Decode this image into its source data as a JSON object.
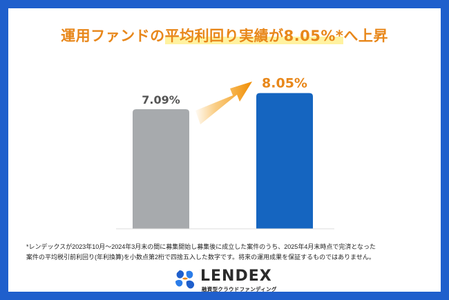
{
  "title": {
    "part1": "運用ファンドの",
    "highlight": "平均利回り実績が8.05%*",
    "part2": "へ上昇"
  },
  "chart_data": {
    "type": "bar",
    "categories": [
      "",
      ""
    ],
    "values": [
      7.09,
      8.05
    ],
    "labels": [
      "7.09%",
      "8.05%"
    ],
    "colors": [
      "#a7aaad",
      "#1565c0"
    ],
    "label_colors": [
      "#555555",
      "#e8871a"
    ],
    "baseline": 7.09,
    "annotation": "increase-arrow"
  },
  "footnote": {
    "line1": "*レンデックスが2023年10月～2024年3月末の間に募集開始し募集後に成立した案件のうち、2025年4月末時点で完済となった",
    "line2": "案件の平均税引前利回り(年利換算)を小数点第2桁で四捨五入した数字です。将来の運用成果を保証するものではありません。"
  },
  "logo": {
    "name": "LENDEX",
    "tagline": "融資型クラウドファンディング"
  },
  "colors": {
    "frame": "#1f5fcc",
    "accent": "#e8871a",
    "highlight": "#fff2a0"
  }
}
